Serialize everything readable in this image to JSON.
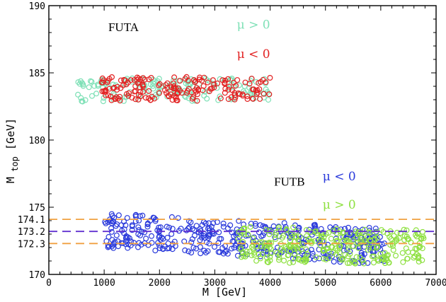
{
  "chart_data": {
    "type": "scatter",
    "title": "",
    "xlabel": "M  [GeV]",
    "ylabel": {
      "main": "M",
      "sub": "top",
      "unit": " [GeV]"
    },
    "xlim": [
      0,
      7000
    ],
    "ylim": [
      170,
      190
    ],
    "xticks": [
      0,
      1000,
      2000,
      3000,
      4000,
      5000,
      6000,
      7000
    ],
    "xtick_labels": [
      "0",
      "1000",
      "2000",
      "3000",
      "4000",
      "5000",
      "6000",
      "7000"
    ],
    "yticks": [
      170,
      175,
      180,
      185,
      190
    ],
    "ytick_labels": [
      "170",
      "175",
      "180",
      "185",
      "190"
    ],
    "reference_lines": [
      {
        "y": 174.1,
        "label": "174.1",
        "color": "#f0a040",
        "style": "dashed"
      },
      {
        "y": 173.2,
        "label": "173.2",
        "color": "#6030d0",
        "style": "dashed"
      },
      {
        "y": 172.3,
        "label": "172.3",
        "color": "#f0a040",
        "style": "dashed"
      }
    ],
    "annotations": [
      {
        "text": "FUTA",
        "x": 1350,
        "y": 188.1
      },
      {
        "text": "FUTB",
        "x": 4350,
        "y": 176.6
      }
    ],
    "legend_entries": [
      {
        "text": "μ > 0",
        "color": "#7ee0b6",
        "x": 3700,
        "y": 188.3
      },
      {
        "text": "μ < 0",
        "color": "#e22222",
        "x": 3700,
        "y": 186.1
      },
      {
        "text": "μ < 0",
        "color": "#2a3adb",
        "x": 5250,
        "y": 177.0
      },
      {
        "text": "μ > 0",
        "color": "#8ee040",
        "x": 5250,
        "y": 174.9
      }
    ],
    "series": [
      {
        "name": "FUTA μ>0",
        "color": "#7ee0b6",
        "marker": "open-circle",
        "x_range": [
          450,
          4000
        ],
        "y_range": [
          182.8,
          184.6
        ],
        "approx_points": 150
      },
      {
        "name": "FUTA μ<0",
        "color": "#e22222",
        "marker": "open-circle",
        "x_range": [
          950,
          4000
        ],
        "y_range": [
          182.9,
          184.7
        ],
        "approx_points": 180
      },
      {
        "name": "FUTB μ<0",
        "color": "#2a3adb",
        "marker": "open-circle",
        "x_range": [
          1000,
          6100
        ],
        "y_range": [
          170.7,
          174.6
        ],
        "approx_points": 420
      },
      {
        "name": "FUTB μ>0",
        "color": "#8ee040",
        "marker": "open-circle",
        "x_range": [
          3400,
          6800
        ],
        "y_range": [
          170.7,
          173.6
        ],
        "approx_points": 300
      }
    ]
  }
}
